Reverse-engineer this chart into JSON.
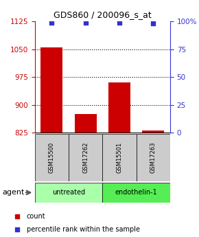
{
  "title": "GDS860 / 200096_s_at",
  "samples": [
    "GSM15500",
    "GSM17262",
    "GSM15501",
    "GSM17263"
  ],
  "counts": [
    1055,
    875,
    960,
    830
  ],
  "percentiles": [
    99,
    99,
    99,
    98
  ],
  "ylim_left": [
    825,
    1125
  ],
  "ylim_right": [
    0,
    100
  ],
  "yticks_left": [
    825,
    900,
    975,
    1050,
    1125
  ],
  "yticks_right": [
    0,
    25,
    50,
    75,
    100
  ],
  "bar_color": "#cc0000",
  "dot_color": "#3333cc",
  "bar_width": 0.65,
  "groups": [
    {
      "label": "untreated",
      "indices": [
        0,
        1
      ],
      "color": "#aaffaa"
    },
    {
      "label": "endothelin-1",
      "indices": [
        2,
        3
      ],
      "color": "#55ee55"
    }
  ],
  "agent_label": "agent",
  "legend_count_label": "count",
  "legend_pct_label": "percentile rank within the sample",
  "sample_box_color": "#cccccc",
  "title_fontsize": 9,
  "tick_fontsize": 7.5,
  "sample_fontsize": 6,
  "group_fontsize": 7,
  "legend_fontsize": 7,
  "agent_fontsize": 8
}
